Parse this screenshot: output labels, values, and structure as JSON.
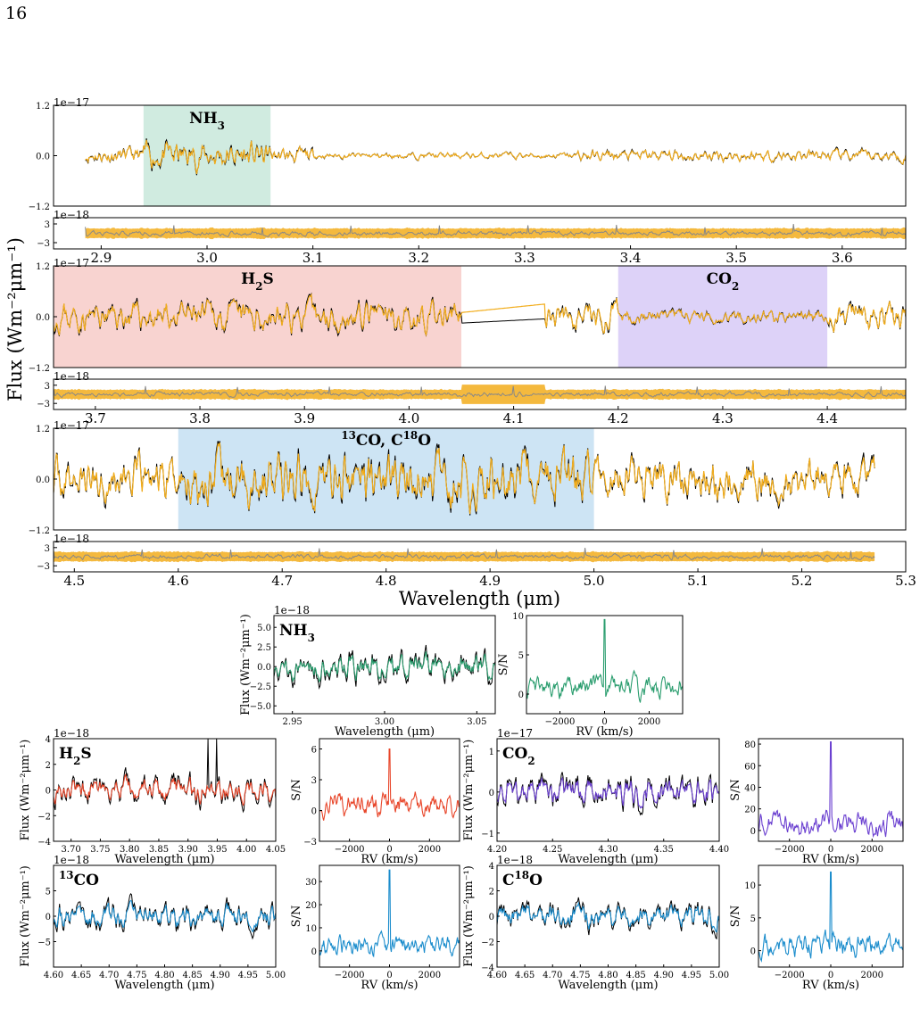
{
  "page_number": "16",
  "colors": {
    "model": "#f2ad1c",
    "data": "#000000",
    "residual": "#888888",
    "nh3": "#2a9d6e",
    "h2s": "#e8462a",
    "co2": "#6a3fd0",
    "co": "#1a8ccc",
    "nh3_band": "#d0ebe0",
    "h2s_band": "#f8d3d0",
    "co2_band": "#ddd2f8",
    "co_band": "#cde4f4"
  },
  "main": {
    "ylabel": "Flux (Wm⁻²μm⁻¹)",
    "xlabel": "Wavelength (μm)"
  },
  "chart_data": [
    {
      "id": "spec1",
      "type": "line",
      "title": "",
      "exponent_label": "1e−17",
      "ylim": [
        -1.2,
        1.2
      ],
      "yticks": [
        "1.2",
        "0.0",
        "−1.2"
      ],
      "xlim": [
        2.855,
        3.66
      ],
      "series": [
        {
          "kind": "data",
          "x_range": [
            2.885,
            3.66
          ],
          "amp": 0.45
        },
        {
          "kind": "model",
          "x_range": [
            2.885,
            3.66
          ],
          "amp": 0.43
        }
      ],
      "shaded_regions": [
        {
          "label": "NH",
          "sub": "3",
          "sup": "",
          "x_range": [
            2.94,
            3.06
          ],
          "color_key": "nh3"
        }
      ]
    },
    {
      "id": "resid1",
      "type": "line",
      "exponent_label": "1e−18",
      "yticks": [
        "3",
        "−3"
      ],
      "ylim": [
        -5,
        5
      ],
      "xlim": [
        2.855,
        3.66
      ],
      "xticks": [
        "2.9",
        "3.0",
        "3.1",
        "3.2",
        "3.3",
        "3.4",
        "3.5",
        "3.6"
      ]
    },
    {
      "id": "spec2",
      "type": "line",
      "exponent_label": "1e−17",
      "ylim": [
        -1.2,
        1.2
      ],
      "yticks": [
        "1.2",
        "0.0",
        "−1.2"
      ],
      "xlim": [
        3.66,
        4.475
      ],
      "series": [
        {
          "kind": "data",
          "x_range": [
            3.66,
            4.475
          ],
          "amp": 0.6
        },
        {
          "kind": "model",
          "x_range": [
            3.66,
            4.475
          ],
          "amp": 0.58
        }
      ],
      "shaded_regions": [
        {
          "label": "H",
          "sub": "2",
          "post": "S",
          "x_range": [
            3.66,
            4.05
          ],
          "color_key": "h2s"
        },
        {
          "label": "CO",
          "sub": "2",
          "post": "",
          "x_range": [
            4.2,
            4.4
          ],
          "color_key": "co2"
        }
      ]
    },
    {
      "id": "resid2",
      "type": "line",
      "exponent_label": "1e−18",
      "yticks": [
        "3",
        "−3"
      ],
      "ylim": [
        -5,
        5
      ],
      "xlim": [
        3.66,
        4.475
      ],
      "xticks": [
        "3.7",
        "3.8",
        "3.9",
        "4.0",
        "4.1",
        "4.2",
        "4.3",
        "4.4"
      ]
    },
    {
      "id": "spec3",
      "type": "line",
      "exponent_label": "1e−17",
      "ylim": [
        -1.2,
        1.2
      ],
      "yticks": [
        "1.2",
        "0.0",
        "−1.2"
      ],
      "xlim": [
        4.48,
        5.3
      ],
      "series": [
        {
          "kind": "data",
          "x_range": [
            4.48,
            5.27
          ],
          "amp": 0.75
        },
        {
          "kind": "model",
          "x_range": [
            4.48,
            5.27
          ],
          "amp": 0.72
        }
      ],
      "shaded_regions": [
        {
          "label": "13CO, C18O",
          "x_range": [
            4.6,
            5.0
          ],
          "color_key": "co"
        }
      ]
    },
    {
      "id": "resid3",
      "type": "line",
      "exponent_label": "1e−18",
      "yticks": [
        "3",
        "−3"
      ],
      "ylim": [
        -5,
        5
      ],
      "xlim": [
        4.48,
        5.3
      ],
      "xticks": [
        "4.5",
        "4.6",
        "4.7",
        "4.8",
        "4.9",
        "5.0",
        "5.1",
        "5.2",
        "5.3"
      ],
      "xlabel": "Wavelength (μm)"
    },
    {
      "id": "nh3_spec",
      "type": "line",
      "species": "NH3",
      "exponent_label": "1e−18",
      "ylabel": "Flux (Wm⁻²μm⁻¹)",
      "xlabel": "Wavelength (μm)",
      "xlim": [
        2.94,
        3.06
      ],
      "ylim": [
        -6,
        6.5
      ],
      "xticks": [
        "2.95",
        "3.00",
        "3.05"
      ],
      "yticks": [
        "5.0",
        "2.5",
        "0.0",
        "−2.5",
        "−5.0"
      ]
    },
    {
      "id": "nh3_ccf",
      "type": "line",
      "species": "NH3",
      "ylabel": "S/N",
      "xlabel": "RV (km/s)",
      "xlim": [
        -3500,
        3500
      ],
      "ylim": [
        -2.5,
        10
      ],
      "xticks": [
        "−2000",
        "0",
        "2000"
      ],
      "yticks": [
        "10",
        "5",
        "0"
      ],
      "peak": 9.5
    },
    {
      "id": "h2s_spec",
      "type": "line",
      "species": "H2S",
      "exponent_label": "1e−18",
      "ylabel": "Flux (Wm⁻²μm⁻¹)",
      "xlabel": "Wavelength (μm)",
      "xlim": [
        3.67,
        4.05
      ],
      "ylim": [
        -4,
        4
      ],
      "xticks": [
        "3.70",
        "3.75",
        "3.80",
        "3.85",
        "3.90",
        "3.95",
        "4.00",
        "4.05"
      ],
      "yticks": [
        "4",
        "2",
        "0",
        "−2",
        "−4"
      ]
    },
    {
      "id": "h2s_ccf",
      "type": "line",
      "species": "H2S",
      "ylabel": "S/N",
      "xlabel": "RV (km/s)",
      "xlim": [
        -3500,
        3500
      ],
      "ylim": [
        -3,
        7
      ],
      "xticks": [
        "−2000",
        "0",
        "2000"
      ],
      "yticks": [
        "6",
        "3",
        "0",
        "−3"
      ],
      "peak": 6
    },
    {
      "id": "co2_spec",
      "type": "line",
      "species": "CO2",
      "exponent_label": "1e−17",
      "ylabel": "Flux (Wm⁻²μm⁻¹)",
      "xlabel": "Wavelength (μm)",
      "xlim": [
        4.2,
        4.4
      ],
      "ylim": [
        -1.2,
        1.3
      ],
      "xticks": [
        "4.20",
        "4.25",
        "4.30",
        "4.35",
        "4.40"
      ],
      "yticks": [
        "1",
        "0",
        "−1"
      ]
    },
    {
      "id": "co2_ccf",
      "type": "line",
      "species": "CO2",
      "ylabel": "S/N",
      "xlabel": "RV (km/s)",
      "xlim": [
        -3500,
        3500
      ],
      "ylim": [
        -10,
        85
      ],
      "xticks": [
        "−2000",
        "0",
        "2000"
      ],
      "yticks": [
        "80",
        "60",
        "40",
        "20",
        "0"
      ],
      "peak": 82
    },
    {
      "id": "13co_spec",
      "type": "line",
      "species": "13CO",
      "exponent_label": "1e−18",
      "ylabel": "Flux (Wm⁻²μm⁻¹)",
      "xlabel": "Wavelength (μm)",
      "xlim": [
        4.6,
        5.0
      ],
      "ylim": [
        -10,
        10
      ],
      "xticks": [
        "4.60",
        "4.65",
        "4.70",
        "4.75",
        "4.80",
        "4.85",
        "4.90",
        "4.95",
        "5.00"
      ],
      "yticks": [
        "5",
        "0",
        "−5"
      ]
    },
    {
      "id": "13co_ccf",
      "type": "line",
      "species": "13CO",
      "ylabel": "S/N",
      "xlabel": "RV (km/s)",
      "xlim": [
        -3500,
        3500
      ],
      "ylim": [
        -7,
        37
      ],
      "xticks": [
        "−2000",
        "0",
        "2000"
      ],
      "yticks": [
        "30",
        "20",
        "10",
        "0"
      ],
      "peak": 35
    },
    {
      "id": "c18o_spec",
      "type": "line",
      "species": "C18O",
      "exponent_label": "1e−18",
      "ylabel": "Flux (Wm⁻²μm⁻¹)",
      "xlabel": "Wavelength (μm)",
      "xlim": [
        4.6,
        5.0
      ],
      "ylim": [
        -4,
        4
      ],
      "xticks": [
        "4.60",
        "4.65",
        "4.70",
        "4.75",
        "4.80",
        "4.85",
        "4.90",
        "4.95",
        "5.00"
      ],
      "yticks": [
        "4",
        "2",
        "0",
        "−2",
        "−4"
      ]
    },
    {
      "id": "c18o_ccf",
      "type": "line",
      "species": "C18O",
      "ylabel": "S/N",
      "xlabel": "RV (km/s)",
      "xlim": [
        -3500,
        3500
      ],
      "ylim": [
        -2.5,
        13
      ],
      "xticks": [
        "−2000",
        "0",
        "2000"
      ],
      "yticks": [
        "10",
        "5",
        "0"
      ],
      "peak": 12
    }
  ]
}
